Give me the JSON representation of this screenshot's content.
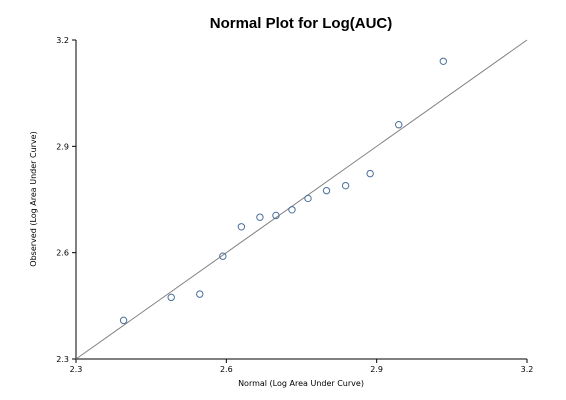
{
  "chart_data": {
    "type": "scatter",
    "title": "Normal Plot for Log(AUC)",
    "xlabel": "Normal (Log Area Under Curve)",
    "ylabel": "Observed (Log Area Under Curve)",
    "xlim": [
      2.3,
      3.2
    ],
    "ylim": [
      2.3,
      3.2
    ],
    "x_ticks": [
      "2.3",
      "2.6",
      "2.9",
      "3.2"
    ],
    "y_ticks": [
      "2.3",
      "2.6",
      "2.9",
      "3.2"
    ],
    "grid": false,
    "legend": "none",
    "reference_line": {
      "from": [
        2.3,
        2.3
      ],
      "to": [
        3.2,
        3.2
      ]
    },
    "points": [
      {
        "x": 2.395,
        "y": 2.409
      },
      {
        "x": 2.49,
        "y": 2.474
      },
      {
        "x": 2.547,
        "y": 2.483
      },
      {
        "x": 2.593,
        "y": 2.59
      },
      {
        "x": 2.63,
        "y": 2.673
      },
      {
        "x": 2.667,
        "y": 2.7
      },
      {
        "x": 2.699,
        "y": 2.705
      },
      {
        "x": 2.731,
        "y": 2.721
      },
      {
        "x": 2.763,
        "y": 2.753
      },
      {
        "x": 2.8,
        "y": 2.775
      },
      {
        "x": 2.838,
        "y": 2.789
      },
      {
        "x": 2.887,
        "y": 2.823
      },
      {
        "x": 2.944,
        "y": 2.961
      },
      {
        "x": 3.033,
        "y": 3.14
      }
    ],
    "colors": {
      "marker": "#4a6f9c",
      "reference_line": "#808080"
    }
  }
}
